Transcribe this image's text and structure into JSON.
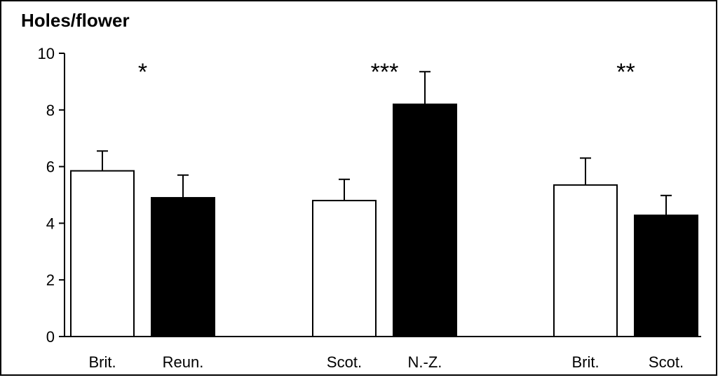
{
  "chart_data": {
    "type": "bar",
    "title": "",
    "ylabel": "Holes/flower",
    "xlabel": "",
    "ylim": [
      0,
      10
    ],
    "yticks": [
      "0",
      "2",
      "4",
      "6",
      "8",
      "10"
    ],
    "grid": false,
    "legend": "none",
    "groups": [
      {
        "significance": "*",
        "bars": [
          {
            "category": "Brit.",
            "value": 5.85,
            "error": 0.7,
            "fill": "white"
          },
          {
            "category": "Reun.",
            "value": 4.9,
            "error": 0.8,
            "fill": "black"
          }
        ]
      },
      {
        "significance": "***",
        "bars": [
          {
            "category": "Scot.",
            "value": 4.8,
            "error": 0.75,
            "fill": "white"
          },
          {
            "category": "N.-Z.",
            "value": 8.2,
            "error": 1.15,
            "fill": "black"
          }
        ]
      },
      {
        "significance": "**",
        "bars": [
          {
            "category": "Brit.",
            "value": 5.35,
            "error": 0.95,
            "fill": "white"
          },
          {
            "category": "Scot.",
            "value": 4.28,
            "error": 0.7,
            "fill": "black"
          }
        ]
      }
    ],
    "colors": {
      "frame": "#000000",
      "open_bar": "#ffffff",
      "filled_bar": "#000000"
    }
  }
}
